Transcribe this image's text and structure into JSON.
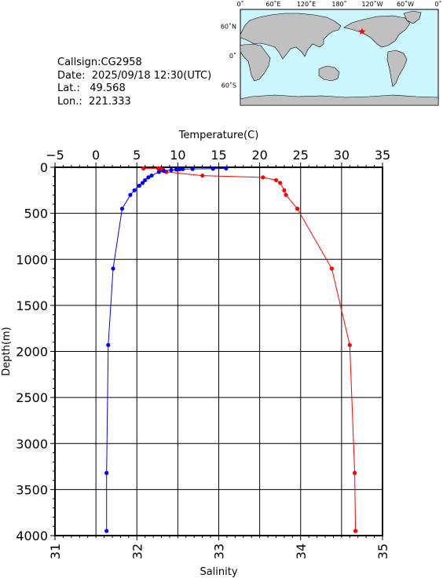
{
  "station": {
    "callsign_label": "Callsign:",
    "callsign": "CG2958",
    "date_label": "Date:",
    "date": "2025/09/18 12:30(UTC)",
    "lat_label": "Lat.:",
    "lat": "49.568",
    "lon_label": "Lon.:",
    "lon": "221.333"
  },
  "map": {
    "top_labels": [
      "0˚",
      "60˚E",
      "120˚E",
      "180˚",
      "120˚W",
      "60˚W",
      "0˚"
    ],
    "left_labels": [
      "60˚N",
      "0˚",
      "60˚S"
    ],
    "ocean_color": "#ccf6ff",
    "land_color": "#c0c0c0",
    "marker_color": "#ff0000",
    "marker": {
      "lon": 221.333,
      "lat": 49.568
    }
  },
  "chart_data": {
    "type": "line",
    "depth_axis": {
      "label": "Depth(m)",
      "lim": [
        0,
        4000
      ],
      "ticks": [
        0,
        500,
        1000,
        1500,
        2000,
        2500,
        3000,
        3500,
        4000
      ],
      "inverted": true
    },
    "temperature_axis": {
      "label": "Temperature(C)",
      "lim": [
        -5,
        35
      ],
      "ticks": [
        -5,
        0,
        5,
        10,
        15,
        20,
        25,
        30,
        35
      ],
      "position": "top"
    },
    "salinity_axis": {
      "label": "Salinity",
      "lim": [
        31,
        35
      ],
      "ticks": [
        31,
        32,
        33,
        34,
        35
      ],
      "position": "bottom"
    },
    "grid": true,
    "series": [
      {
        "color": "#ff0000",
        "axis": "salinity",
        "points": [
          {
            "x": 32.08,
            "depth": 12
          },
          {
            "x": 32.26,
            "depth": 12
          },
          {
            "x": 32.28,
            "depth": 15
          },
          {
            "x": 32.3,
            "depth": 20
          },
          {
            "x": 32.32,
            "depth": 25
          },
          {
            "x": 32.3,
            "depth": 30
          },
          {
            "x": 32.33,
            "depth": 40
          },
          {
            "x": 32.36,
            "depth": 50
          },
          {
            "x": 32.8,
            "depth": 90
          },
          {
            "x": 33.54,
            "depth": 110
          },
          {
            "x": 33.7,
            "depth": 140
          },
          {
            "x": 33.75,
            "depth": 170
          },
          {
            "x": 33.8,
            "depth": 250
          },
          {
            "x": 33.82,
            "depth": 300
          },
          {
            "x": 33.96,
            "depth": 450
          },
          {
            "x": 34.38,
            "depth": 1100
          },
          {
            "x": 34.6,
            "depth": 1930
          },
          {
            "x": 34.66,
            "depth": 3320
          },
          {
            "x": 34.67,
            "depth": 3950
          }
        ]
      },
      {
        "color": "#0000ff",
        "axis": "temperature",
        "points": [
          {
            "x": 15.9,
            "depth": 12
          },
          {
            "x": 14.3,
            "depth": 15
          },
          {
            "x": 11.8,
            "depth": 18
          },
          {
            "x": 10.6,
            "depth": 20
          },
          {
            "x": 10.2,
            "depth": 22
          },
          {
            "x": 9.8,
            "depth": 25
          },
          {
            "x": 9.2,
            "depth": 30
          },
          {
            "x": 8.3,
            "depth": 40
          },
          {
            "x": 7.7,
            "depth": 50
          },
          {
            "x": 6.8,
            "depth": 90
          },
          {
            "x": 6.4,
            "depth": 110
          },
          {
            "x": 6.0,
            "depth": 140
          },
          {
            "x": 5.7,
            "depth": 170
          },
          {
            "x": 5.3,
            "depth": 200
          },
          {
            "x": 4.7,
            "depth": 250
          },
          {
            "x": 4.2,
            "depth": 300
          },
          {
            "x": 3.2,
            "depth": 450
          },
          {
            "x": 2.1,
            "depth": 1100
          },
          {
            "x": 1.5,
            "depth": 1930
          },
          {
            "x": 1.3,
            "depth": 3320
          },
          {
            "x": 1.3,
            "depth": 3950
          }
        ]
      }
    ]
  }
}
